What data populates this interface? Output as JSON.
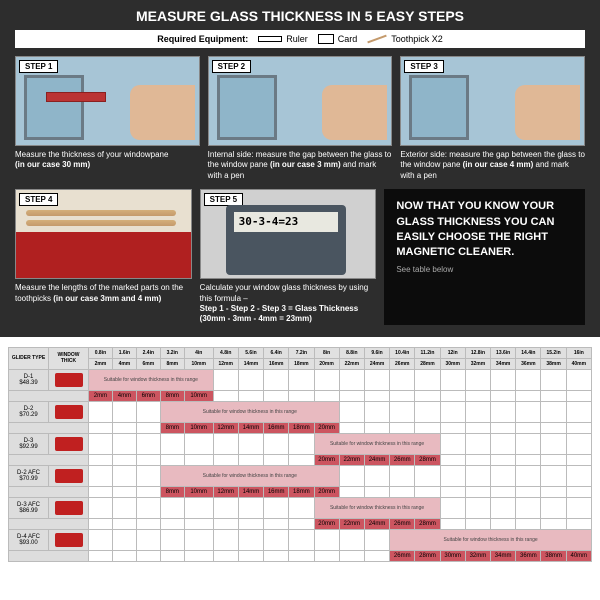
{
  "title": "MEASURE GLASS THICKNESS IN 5 EASY STEPS",
  "equipment": {
    "label": "Required Equipment:",
    "ruler": "Ruler",
    "card": "Card",
    "toothpick": "Toothpick X2"
  },
  "steps": {
    "s1": {
      "label": "STEP 1",
      "caption_a": "Measure the thickness of your windowpane",
      "caption_b": "(in our case 30 mm)"
    },
    "s2": {
      "label": "STEP 2",
      "caption_a": "Internal side: measure the gap between the glass to the window pane ",
      "caption_b": "(in our case 3 mm)",
      "caption_c": " and mark with a pen"
    },
    "s3": {
      "label": "STEP 3",
      "caption_a": "Exterior side: measure the gap between the glass to the window pane ",
      "caption_b": "(in our case 4 mm)",
      "caption_c": " and mark with a pen"
    },
    "s4": {
      "label": "STEP 4",
      "caption_a": "Measure the lengths of the marked parts on the toothpicks ",
      "caption_b": "(in our case 3mm and 4 mm)"
    },
    "s5": {
      "label": "STEP 5",
      "display": "30-3-4=23",
      "caption_a": "Calculate your window glass thickness by using this formula –",
      "caption_b": "Step 1 - Step 2 - Step 3 = Glass Thickness (30mm - 3mm - 4mm = 23mm)"
    }
  },
  "info": {
    "title": "NOW THAT YOU KNOW YOUR GLASS THICKNESS YOU CAN EASILY CHOOSE THE RIGHT MAGNETIC CLEANER.",
    "sub": "See table below"
  },
  "table": {
    "col1": "GLIDER TYPE",
    "col2": "WINDOW THICK",
    "inches": [
      "0.8in",
      "1.6in",
      "2.4in",
      "3.2in",
      "4in",
      "4.8in",
      "5.6in",
      "6.4in",
      "7.2in",
      "8in",
      "8.8in",
      "9.6in",
      "10.4in",
      "11.2in",
      "12in",
      "12.8in",
      "13.6in",
      "14.4in",
      "15.2in",
      "16in"
    ],
    "mm": [
      "2mm",
      "4mm",
      "6mm",
      "8mm",
      "10mm",
      "12mm",
      "14mm",
      "16mm",
      "18mm",
      "20mm",
      "22mm",
      "24mm",
      "26mm",
      "28mm",
      "30mm",
      "32mm",
      "34mm",
      "36mm",
      "38mm",
      "40mm"
    ],
    "rows": [
      {
        "name": "D-1",
        "price": "$48.39",
        "range_start": 0,
        "range_end": 4,
        "label": "Suitable for window thickness in this range"
      },
      {
        "name": "D-2",
        "price": "$70.29",
        "range_start": 3,
        "range_end": 9,
        "label": "Suitable for window thickness in this range"
      },
      {
        "name": "D-3",
        "price": "$92.99",
        "range_start": 9,
        "range_end": 13,
        "label": "Suitable for window thickness in this range"
      },
      {
        "name": "D-2 AFC",
        "price": "$70.99",
        "range_start": 3,
        "range_end": 9,
        "label": "Suitable for window thickness in this range"
      },
      {
        "name": "D-3 AFC",
        "price": "$86.99",
        "range_start": 9,
        "range_end": 13,
        "label": "Suitable for window thickness in this range"
      },
      {
        "name": "D-4 AFC",
        "price": "$93.00",
        "range_start": 12,
        "range_end": 19,
        "label": "Suitable for window thickness in this range"
      }
    ]
  }
}
